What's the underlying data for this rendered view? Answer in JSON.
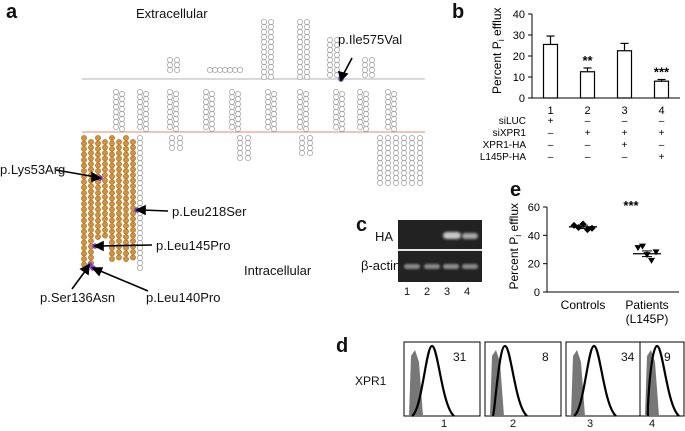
{
  "panel_a": {
    "letter": "a",
    "region_top": "Extracellular",
    "region_bottom": "Intracellular",
    "mutations": [
      "p.Ile575Val",
      "p.Lys53Arg",
      "p.Leu218Ser",
      "p.Leu145Pro",
      "p.Ser136Asn",
      "p.Leu140Pro"
    ],
    "colors": {
      "highlight_residue": "#d4933a",
      "mutation_marker": "#7a3fc8",
      "membrane_line_top": "#9a9a9a",
      "membrane_line_bottom": "#d8624a"
    }
  },
  "panel_b": {
    "letter": "b",
    "chart_data": {
      "type": "bar",
      "categories": [
        "1",
        "2",
        "3",
        "4"
      ],
      "values": [
        25.5,
        12.5,
        22.5,
        8
      ],
      "errors": [
        4,
        1.8,
        3.5,
        0.8
      ],
      "significance": [
        "",
        "**",
        "",
        "***"
      ],
      "ylabel": "Percent P",
      "ylabel_sub": "i",
      "ylabel_tail": " efflux",
      "ylim": [
        0,
        40
      ],
      "yticks": [
        "0",
        "10",
        "20",
        "30",
        "40"
      ],
      "conditions": [
        {
          "name": "siLUC",
          "marks": [
            "+",
            "–",
            "–",
            "–"
          ]
        },
        {
          "name": "siXPR1",
          "marks": [
            "–",
            "+",
            "+",
            "+"
          ]
        },
        {
          "name": "XPR1-HA",
          "marks": [
            "–",
            "–",
            "+",
            "–"
          ]
        },
        {
          "name": "L145P-HA",
          "marks": [
            "–",
            "–",
            "–",
            "+"
          ]
        }
      ]
    }
  },
  "panel_c": {
    "letter": "c",
    "rows": [
      "HA",
      "β-actin"
    ],
    "lanes": [
      "1",
      "2",
      "3",
      "4"
    ]
  },
  "panel_d": {
    "letter": "d",
    "row_label": "XPR1",
    "histograms": [
      {
        "lane": "1",
        "value": "31"
      },
      {
        "lane": "2",
        "value": "8"
      },
      {
        "lane": "3",
        "value": "34"
      },
      {
        "lane": "4",
        "value": "9"
      }
    ]
  },
  "panel_e": {
    "letter": "e",
    "chart_data": {
      "type": "scatter",
      "categories": [
        "Controls",
        "Patients"
      ],
      "category_sublabels": [
        "",
        "(L145P)"
      ],
      "series": [
        {
          "values": [
            47,
            45.5,
            48,
            44,
            45
          ]
        },
        {
          "values": [
            31,
            32,
            26,
            22,
            28
          ]
        }
      ],
      "means": [
        46,
        27
      ],
      "sem": [
        1.2,
        2
      ],
      "significance": "***",
      "ylabel": "Percent P",
      "ylabel_sub": "i",
      "ylabel_tail": " efflux",
      "ylim": [
        0,
        60
      ],
      "yticks": [
        "0",
        "20",
        "40",
        "60"
      ]
    }
  }
}
